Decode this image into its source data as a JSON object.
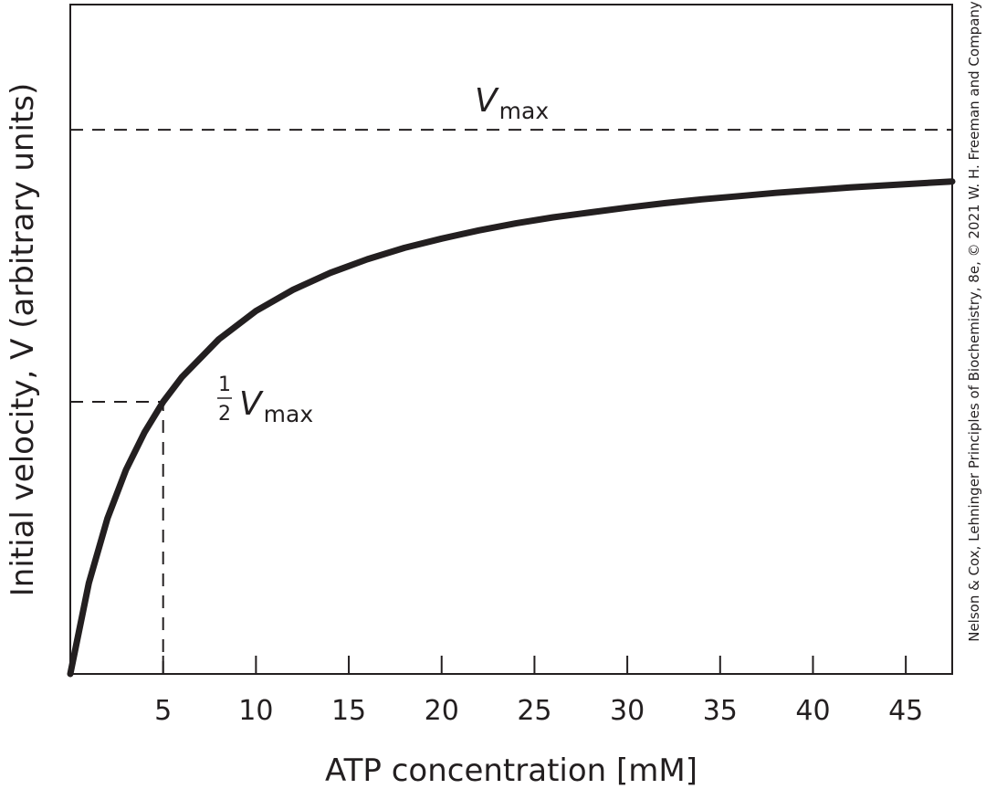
{
  "chart_data": {
    "type": "line",
    "xlabel": "ATP concentration [mM]",
    "ylabel": "Initial velocity, V (arbitrary units)",
    "x_ticks": [
      5,
      10,
      15,
      20,
      25,
      30,
      35,
      40,
      45
    ],
    "xlim": [
      0,
      47.5
    ],
    "ylim": [
      0,
      1.23
    ],
    "km": 5,
    "vmax": 1.0,
    "series": [
      {
        "x": [
          0,
          1,
          2,
          3,
          4,
          5,
          6,
          8,
          10,
          12,
          14,
          16,
          18,
          20,
          22,
          24,
          26,
          28,
          30,
          32,
          34,
          36,
          38,
          40,
          42,
          44,
          46,
          47.5
        ],
        "y": [
          0,
          0.167,
          0.286,
          0.375,
          0.444,
          0.5,
          0.545,
          0.615,
          0.667,
          0.706,
          0.737,
          0.762,
          0.783,
          0.8,
          0.815,
          0.828,
          0.839,
          0.848,
          0.857,
          0.865,
          0.872,
          0.878,
          0.884,
          0.889,
          0.894,
          0.898,
          0.902,
          0.905
        ]
      }
    ],
    "reference_lines": [
      {
        "orientation": "horizontal",
        "y": 1.0,
        "label": "Vmax",
        "label_main": "V",
        "label_sub": "max"
      },
      {
        "orientation": "horizontal",
        "y": 0.5,
        "x_end": 5,
        "label": "1/2 Vmax",
        "frac_num": "1",
        "frac_den": "2",
        "label_main": "V",
        "label_sub": "max"
      },
      {
        "orientation": "vertical",
        "x": 5,
        "y_end": 0.5
      }
    ],
    "grid": false,
    "legend": "none"
  },
  "credit": "Nelson & Cox, Lehninger Principles of Biochemistry, 8e, © 2021 W. H. Freeman and Company"
}
